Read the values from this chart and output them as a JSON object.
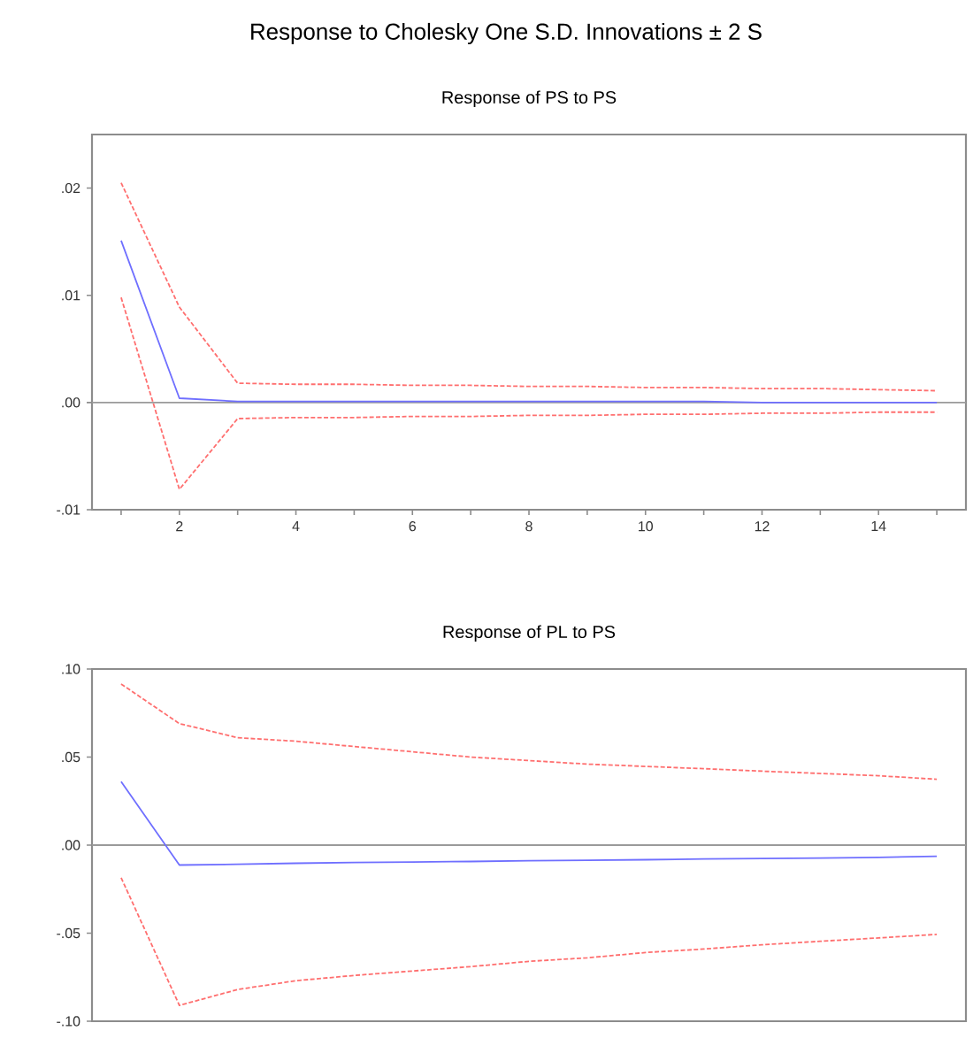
{
  "chart_data": [
    {
      "type": "line",
      "title": "Response to Cholesky One S.D. Innovations ± 2 S",
      "subtitle": "Response of PS to PS",
      "x": [
        1,
        2,
        3,
        4,
        5,
        6,
        7,
        8,
        9,
        10,
        11,
        12,
        13,
        14,
        15
      ],
      "series": [
        {
          "color": "#ff6f6f",
          "line_style": "dashed",
          "values": [
            0.0205,
            0.0089,
            0.0018,
            0.0017,
            0.0017,
            0.0016,
            0.0016,
            0.0015,
            0.0015,
            0.0014,
            0.0014,
            0.0013,
            0.0013,
            0.0012,
            0.0011
          ]
        },
        {
          "color": "#6f6fff",
          "line_style": "solid",
          "values": [
            0.0151,
            0.0004,
            0.0001,
            0.0001,
            0.0001,
            0.0001,
            0.0001,
            0.0001,
            0.0001,
            0.0001,
            0.0001,
            0.0,
            0.0,
            0.0,
            0.0
          ]
        },
        {
          "color": "#ff6f6f",
          "line_style": "dashed",
          "values": [
            0.0098,
            -0.0081,
            -0.0015,
            -0.0014,
            -0.0014,
            -0.0013,
            -0.0013,
            -0.0012,
            -0.0012,
            -0.0011,
            -0.0011,
            -0.001,
            -0.001,
            -0.0009,
            -0.0009
          ]
        }
      ],
      "xlim": [
        0.5,
        15.5
      ],
      "ylim": [
        -0.01,
        0.025
      ],
      "xticks": [
        {
          "value": 1,
          "label": null
        },
        2,
        {
          "value": 3,
          "label": null
        },
        4,
        {
          "value": 5,
          "label": null
        },
        6,
        {
          "value": 7,
          "label": null
        },
        8,
        {
          "value": 9,
          "label": null
        },
        10,
        {
          "value": 11,
          "label": null
        },
        12,
        {
          "value": 13,
          "label": null
        },
        14,
        {
          "value": 15,
          "label": null
        }
      ],
      "yticks": [
        {
          "value": -0.01,
          "label": "-.01"
        },
        {
          "value": 0,
          "label": ".00"
        },
        {
          "value": 0.01,
          "label": ".01"
        },
        {
          "value": 0.02,
          "label": ".02"
        }
      ],
      "ref_lines": [
        {
          "axis": "y",
          "value": 0,
          "color": "#9a9a9a"
        }
      ]
    },
    {
      "type": "line",
      "title": "Response of PL to PS",
      "x": [
        1,
        2,
        3,
        4,
        5,
        6,
        7,
        8,
        9,
        10,
        11,
        12,
        13,
        14,
        15
      ],
      "series": [
        {
          "color": "#ff6f6f",
          "line_style": "dashed",
          "values": [
            0.0915,
            0.069,
            0.061,
            0.059,
            0.056,
            0.053,
            0.05,
            0.048,
            0.046,
            0.0447,
            0.0434,
            0.042,
            0.0407,
            0.0394,
            0.0374
          ]
        },
        {
          "color": "#6f6fff",
          "line_style": "solid",
          "values": [
            0.036,
            -0.0113,
            -0.0109,
            -0.0103,
            -0.0099,
            -0.0096,
            -0.0093,
            -0.0089,
            -0.0086,
            -0.0083,
            -0.0079,
            -0.0076,
            -0.0073,
            -0.007,
            -0.0063
          ]
        },
        {
          "color": "#ff6f6f",
          "line_style": "dashed",
          "values": [
            -0.0185,
            -0.091,
            -0.082,
            -0.077,
            -0.074,
            -0.0715,
            -0.069,
            -0.066,
            -0.064,
            -0.061,
            -0.059,
            -0.0566,
            -0.0546,
            -0.0527,
            -0.0507
          ]
        }
      ],
      "xlim": [
        0.5,
        15.5
      ],
      "ylim": [
        -0.1,
        0.1
      ],
      "tick_labels": "y",
      "yticks": [
        {
          "value": -0.1,
          "label": "-.10"
        },
        {
          "value": -0.05,
          "label": "-.05"
        },
        {
          "value": 0,
          "label": ".00"
        },
        {
          "value": 0.05,
          "label": ".05"
        },
        {
          "value": 0.1,
          "label": ".10"
        }
      ],
      "ref_lines": [
        {
          "axis": "y",
          "value": 0,
          "color": "#9a9a9a"
        }
      ]
    }
  ]
}
